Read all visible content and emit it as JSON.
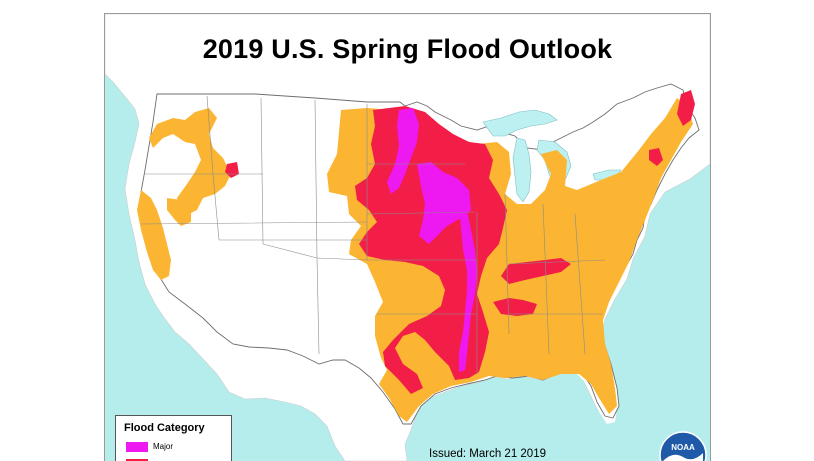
{
  "map": {
    "title": "2019 U.S. Spring Flood Outlook",
    "issued": "Issued: March 21 2019",
    "logo_text": "NOAA"
  },
  "legend": {
    "title": "Flood Category",
    "items": [
      {
        "label": "Major",
        "color": "#ee18f0"
      },
      {
        "label": "",
        "color": "#f21e48"
      }
    ]
  },
  "colors": {
    "ocean": "#b5ecec",
    "land": "#ffffff",
    "great_lakes": "#bdf0f0",
    "minor": "#fbb532",
    "moderate": "#f21e48",
    "major": "#ee18f0",
    "state_border": "#8c8c8c",
    "noaa_blue": "#1e5aa8"
  }
}
